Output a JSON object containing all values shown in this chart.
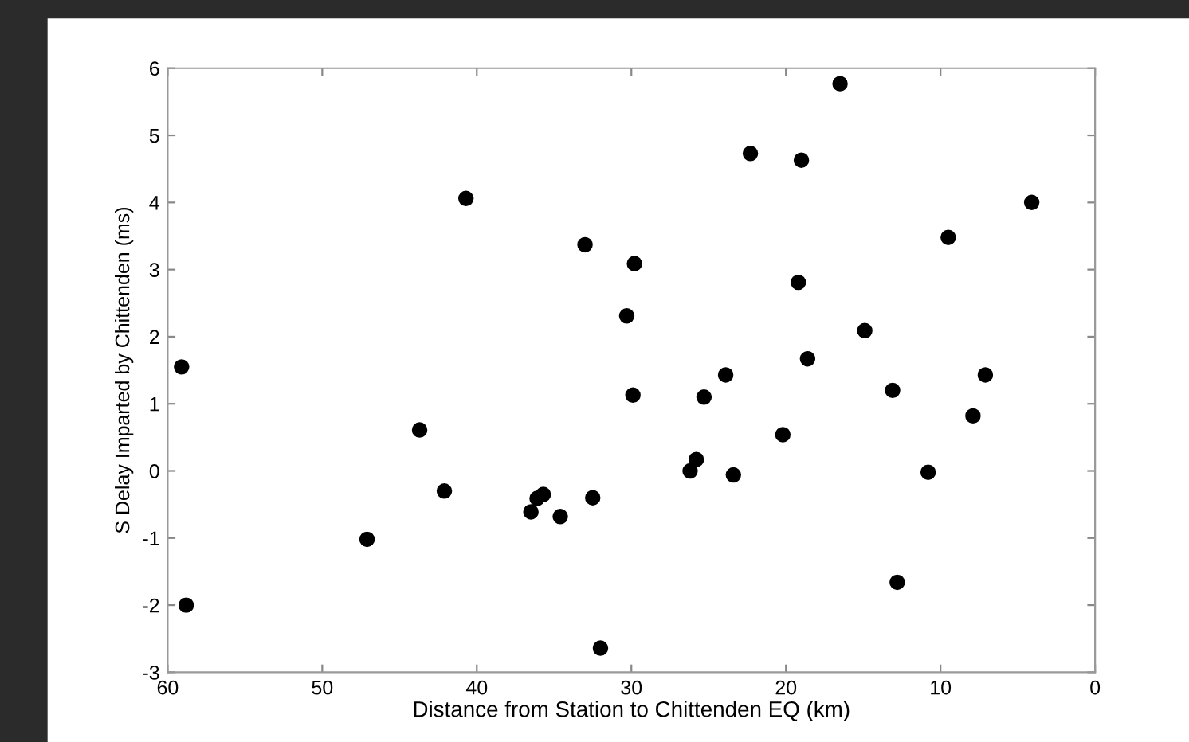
{
  "chart_data": {
    "type": "scatter",
    "xlabel": "Distance from Station to Chittenden EQ (km)",
    "ylabel": "S Delay Imparted by Chittenden (ms)",
    "xlim": [
      60,
      0
    ],
    "xticks": [
      60,
      50,
      40,
      30,
      20,
      10,
      0
    ],
    "ylim": [
      -3,
      6
    ],
    "yticks": [
      -3,
      -2,
      -1,
      0,
      1,
      2,
      3,
      4,
      5,
      6
    ],
    "grid": false,
    "marker": "circle",
    "series": [
      {
        "color": "#000000",
        "x": [
          59.1,
          58.8,
          47.1,
          43.7,
          42.1,
          40.7,
          36.5,
          36.1,
          35.7,
          34.6,
          33.0,
          32.5,
          32.0,
          16.5,
          22.3,
          19.0,
          4.1,
          9.5,
          29.8,
          19.2,
          30.3,
          14.9,
          18.6,
          23.9,
          7.1,
          29.9,
          25.3,
          13.1,
          7.9,
          20.2,
          25.8,
          26.2,
          23.4,
          10.8,
          12.8
        ],
        "values": [
          1.55,
          -2.0,
          -1.02,
          0.61,
          -0.3,
          4.06,
          -0.61,
          -0.41,
          -0.35,
          -0.68,
          3.37,
          -0.4,
          -2.64,
          5.77,
          4.73,
          4.63,
          4.0,
          3.48,
          3.09,
          2.81,
          2.31,
          2.09,
          1.67,
          1.43,
          1.43,
          1.13,
          1.1,
          1.2,
          0.82,
          0.54,
          0.17,
          0.0,
          -0.06,
          -0.02,
          -1.66
        ]
      }
    ]
  }
}
